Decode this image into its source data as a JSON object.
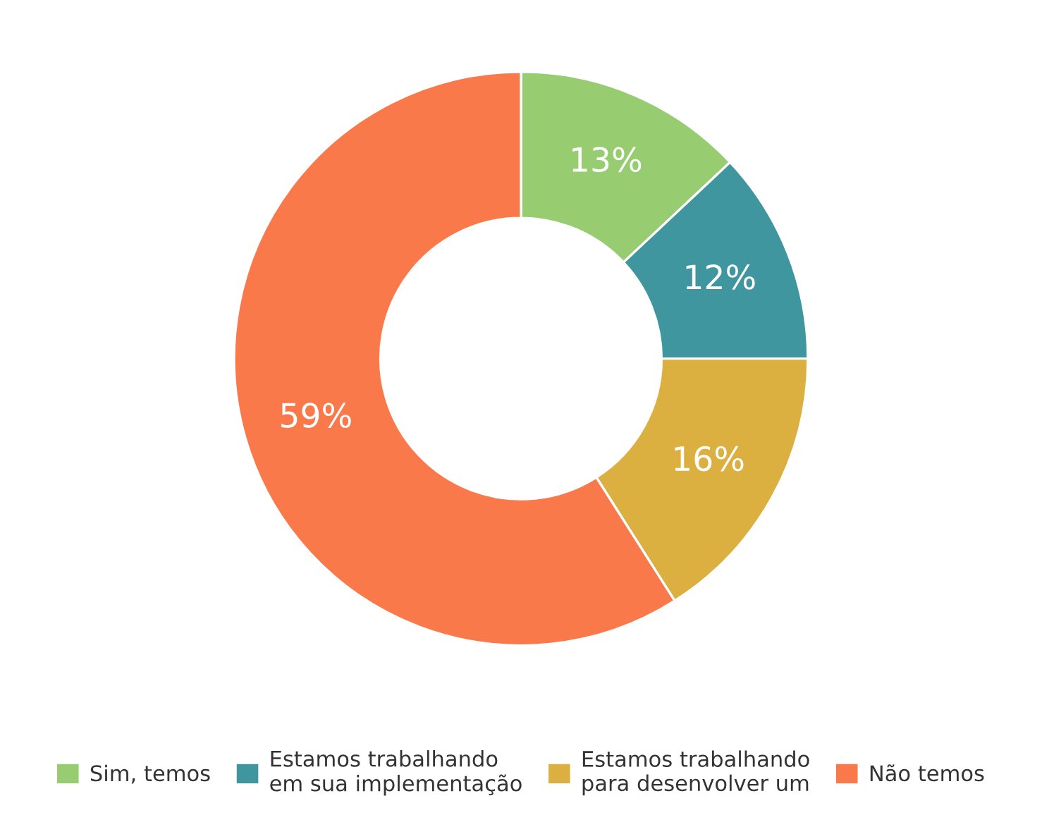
{
  "chart_data": {
    "type": "donut",
    "categories": [
      "Sim, temos",
      "Estamos trabalhando\nem sua implementação",
      "Estamos trabalhando\npara desenvolver um",
      "Não temos"
    ],
    "values": [
      13,
      12,
      16,
      59
    ],
    "value_labels": [
      "13%",
      "12%",
      "16%",
      "59%"
    ],
    "colors": [
      "#97cc70",
      "#3f969f",
      "#dcb040",
      "#f9794a"
    ],
    "legend": "bottom"
  }
}
